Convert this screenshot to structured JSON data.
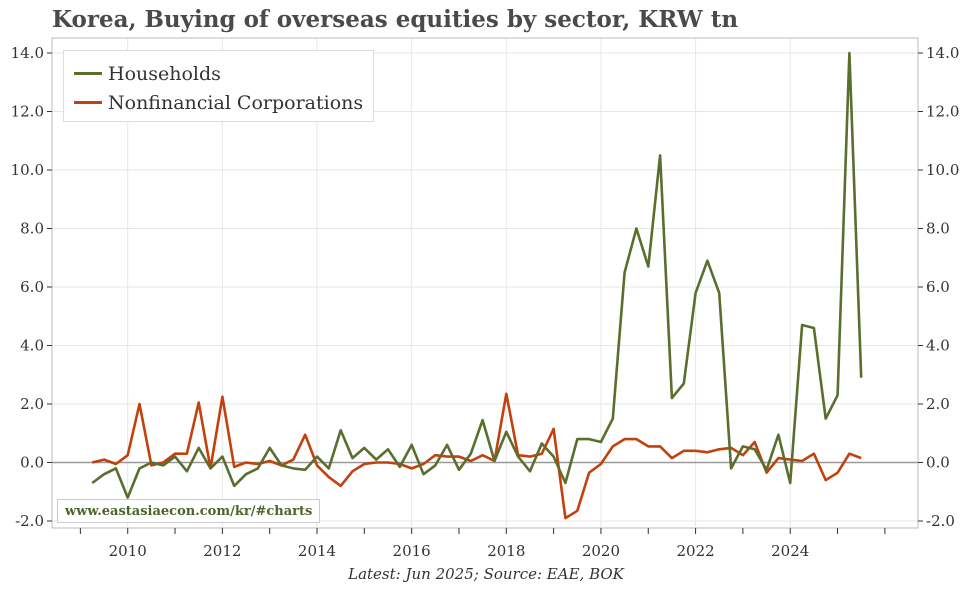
{
  "title": "Korea, Buying of overseas equities by sector, KRW tn",
  "footer": "Latest: Jun 2025; Source: EAE, BOK",
  "watermark": "www.eastasiaecon.com/kr/#charts",
  "colors": {
    "households": "#5a6e2e",
    "nfc": "#c2410c",
    "zero_line": "#999999",
    "grid": "#e6e6e6",
    "axis": "#333333"
  },
  "chart_data": {
    "type": "line",
    "title": "Korea, Buying of overseas equities by sector, KRW tn",
    "xlabel": "",
    "ylabel": "",
    "xlim": [
      2008.4,
      2026.7
    ],
    "ylim": [
      -2.0,
      14.0
    ],
    "y_ticks": [
      "-2.0",
      "0.0",
      "2.0",
      "4.0",
      "6.0",
      "8.0",
      "10.0",
      "12.0",
      "14.0"
    ],
    "x_ticks": [
      "2010",
      "2012",
      "2014",
      "2016",
      "2018",
      "2020",
      "2022",
      "2024"
    ],
    "legend_position": "top-left",
    "grid": true,
    "x": [
      2009.25,
      2009.5,
      2009.75,
      2010.0,
      2010.25,
      2010.5,
      2010.75,
      2011.0,
      2011.25,
      2011.5,
      2011.75,
      2012.0,
      2012.25,
      2012.5,
      2012.75,
      2013.0,
      2013.25,
      2013.5,
      2013.75,
      2014.0,
      2014.25,
      2014.5,
      2014.75,
      2015.0,
      2015.25,
      2015.5,
      2015.75,
      2016.0,
      2016.25,
      2016.5,
      2016.75,
      2017.0,
      2017.25,
      2017.5,
      2017.75,
      2018.0,
      2018.25,
      2018.5,
      2018.75,
      2019.0,
      2019.25,
      2019.5,
      2019.75,
      2020.0,
      2020.25,
      2020.5,
      2020.75,
      2021.0,
      2021.25,
      2021.5,
      2021.75,
      2022.0,
      2022.25,
      2022.5,
      2022.75,
      2023.0,
      2023.25,
      2023.5,
      2023.75,
      2024.0,
      2024.25,
      2024.5,
      2024.75,
      2025.0,
      2025.25,
      2025.5
    ],
    "series": [
      {
        "name": "Households",
        "values": [
          -0.7,
          -0.4,
          -0.2,
          -1.2,
          -0.2,
          0.0,
          -0.1,
          0.2,
          -0.3,
          0.5,
          -0.2,
          0.2,
          -0.8,
          -0.4,
          -0.2,
          0.5,
          -0.1,
          -0.2,
          -0.25,
          0.2,
          -0.2,
          1.1,
          0.15,
          0.5,
          0.1,
          0.45,
          -0.15,
          0.6,
          -0.4,
          -0.1,
          0.6,
          -0.25,
          0.3,
          1.45,
          0.05,
          1.05,
          0.2,
          -0.3,
          0.65,
          0.2,
          -0.7,
          0.8,
          0.8,
          0.7,
          1.5,
          6.5,
          8.0,
          6.7,
          10.5,
          2.2,
          2.7,
          5.8,
          6.9,
          5.8,
          -0.2,
          0.55,
          0.45,
          -0.25,
          0.95,
          -0.7,
          4.7,
          4.6,
          1.5,
          2.3,
          14.0,
          2.9
        ]
      },
      {
        "name": "Nonfinancial Corporations",
        "values": [
          0.0,
          0.1,
          -0.05,
          0.25,
          2.0,
          -0.1,
          0.0,
          0.3,
          0.3,
          2.05,
          -0.2,
          2.25,
          -0.15,
          0.0,
          -0.05,
          0.05,
          -0.1,
          0.1,
          0.95,
          -0.1,
          -0.5,
          -0.8,
          -0.3,
          -0.05,
          0.0,
          0.0,
          -0.05,
          -0.2,
          -0.05,
          0.25,
          0.2,
          0.2,
          0.05,
          0.25,
          0.05,
          2.35,
          0.25,
          0.2,
          0.3,
          1.15,
          -1.9,
          -1.65,
          -0.35,
          -0.05,
          0.55,
          0.8,
          0.8,
          0.55,
          0.55,
          0.15,
          0.4,
          0.4,
          0.35,
          0.45,
          0.5,
          0.25,
          0.7,
          -0.35,
          0.15,
          0.1,
          0.05,
          0.3,
          -0.6,
          -0.35,
          0.3,
          0.15
        ]
      }
    ]
  }
}
